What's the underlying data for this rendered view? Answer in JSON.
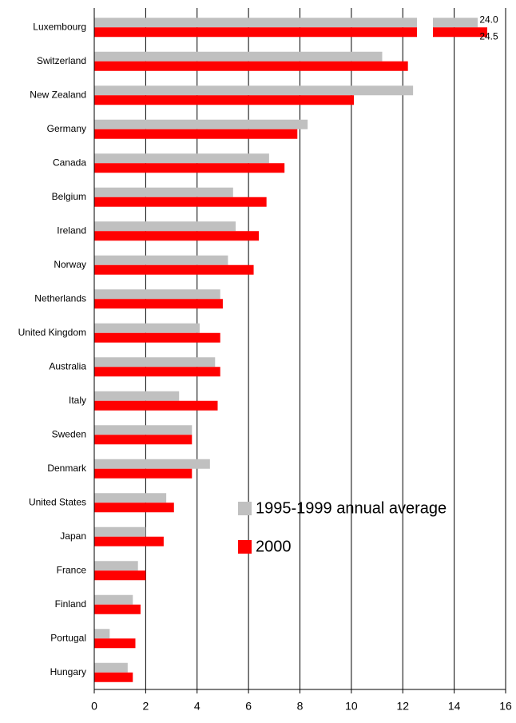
{
  "chart_data": {
    "type": "bar",
    "orientation": "horizontal",
    "categories": [
      "Luxembourg",
      "Switzerland",
      "New Zealand",
      "Germany",
      "Canada",
      "Belgium",
      "Ireland",
      "Norway",
      "Netherlands",
      "United Kingdom",
      "Australia",
      "Italy",
      "Sweden",
      "Denmark",
      "United States",
      "Japan",
      "France",
      "Finland",
      "Portugal",
      "Hungary"
    ],
    "series": [
      {
        "name": "1995-1999 annual average",
        "color": "#c0c0c0",
        "values": [
          24.0,
          11.2,
          12.4,
          8.3,
          6.8,
          5.4,
          5.5,
          5.2,
          4.9,
          4.1,
          4.7,
          3.3,
          3.8,
          4.5,
          2.8,
          2.0,
          1.7,
          1.5,
          0.6,
          1.3
        ],
        "value_labels": [
          "24.0",
          null,
          null,
          null,
          null,
          null,
          null,
          null,
          null,
          null,
          null,
          null,
          null,
          null,
          null,
          null,
          null,
          null,
          null,
          null
        ]
      },
      {
        "name": "2000",
        "color": "#ff0000",
        "values": [
          24.5,
          12.2,
          10.1,
          7.9,
          7.4,
          6.7,
          6.4,
          6.2,
          5.0,
          4.9,
          4.9,
          4.8,
          3.8,
          3.8,
          3.1,
          2.7,
          2.0,
          1.8,
          1.6,
          1.5
        ],
        "value_labels": [
          "24.5",
          null,
          null,
          null,
          null,
          null,
          null,
          null,
          null,
          null,
          null,
          null,
          null,
          null,
          null,
          null,
          null,
          null,
          null,
          null
        ]
      }
    ],
    "xlim": [
      0,
      16
    ],
    "xticks": [
      0,
      2,
      4,
      6,
      8,
      10,
      12,
      14,
      16
    ],
    "grid": true,
    "legend": "lower right"
  }
}
